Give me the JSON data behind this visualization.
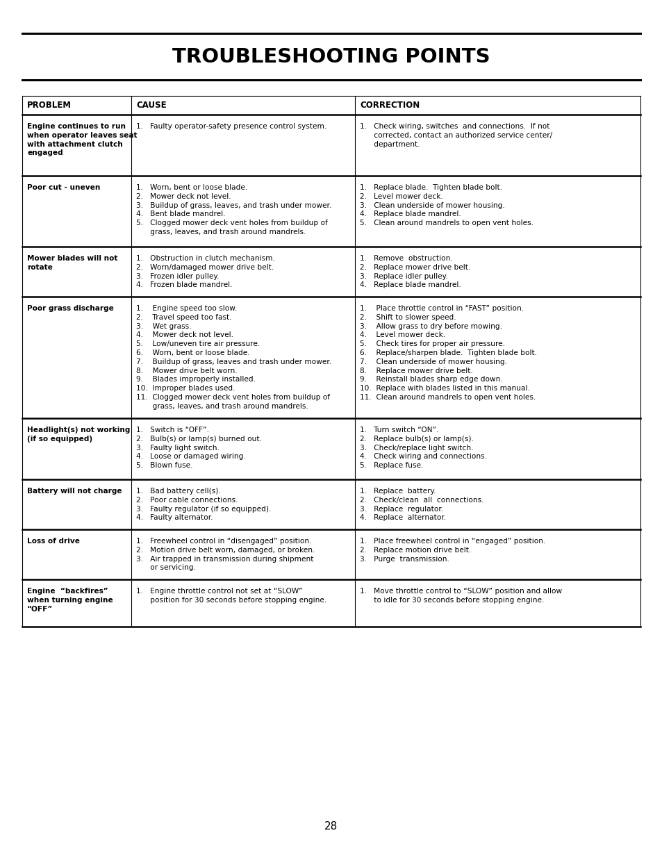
{
  "title": "TROUBLESHOOTING POINTS",
  "page_number": "28",
  "background_color": "#ffffff",
  "text_color": "#000000",
  "col_headers": [
    "PROBLEM",
    "CAUSE",
    "CORRECTION"
  ],
  "c0x": 0.033,
  "c1x": 0.198,
  "c2x": 0.535,
  "c3x": 0.972,
  "rows": [
    {
      "problem": "Engine continues to run\nwhen operator leaves seat\nwith attachment clutch\nengaged",
      "cause": "1.   Faulty operator-safety presence control system.",
      "correction": "1.   Check wiring, switches  and connections.  If not\n      corrected, contact an authorized service center/\n      department."
    },
    {
      "problem": "Poor cut - uneven",
      "cause": "1.   Worn, bent or loose blade.\n2.   Mower deck not level.\n3.   Buildup of grass, leaves, and trash under mower.\n4.   Bent blade mandrel.\n5.   Clogged mower deck vent holes from buildup of\n      grass, leaves, and trash around mandrels.",
      "correction": "1.   Replace blade.  Tighten blade bolt.\n2.   Level mower deck.\n3.   Clean underside of mower housing.\n4.   Replace blade mandrel.\n5.   Clean around mandrels to open vent holes."
    },
    {
      "problem": "Mower blades will not\nrotate",
      "cause": "1.   Obstruction in clutch mechanism.\n2.   Worn/damaged mower drive belt.\n3.   Frozen idler pulley.\n4.   Frozen blade mandrel.",
      "correction": "1.   Remove  obstruction.\n2.   Replace mower drive belt.\n3.   Replace idler pulley.\n4.   Replace blade mandrel."
    },
    {
      "problem": "Poor grass discharge",
      "cause": "1.    Engine speed too slow.\n2.    Travel speed too fast.\n3.    Wet grass.\n4.    Mower deck not level.\n5.    Low/uneven tire air pressure.\n6.    Worn, bent or loose blade.\n7.    Buildup of grass, leaves and trash under mower.\n8.    Mower drive belt worn.\n9.    Blades improperly installed.\n10.  Improper blades used.\n11.  Clogged mower deck vent holes from buildup of\n       grass, leaves, and trash around mandrels.",
      "correction": "1.    Place throttle control in “FAST” position.\n2.    Shift to slower speed.\n3.    Allow grass to dry before mowing.\n4.    Level mower deck.\n5.    Check tires for proper air pressure.\n6.    Replace/sharpen blade.  Tighten blade bolt.\n7.    Clean underside of mower housing.\n8.    Replace mower drive belt.\n9.    Reinstall blades sharp edge down.\n10.  Replace with blades listed in this manual.\n11.  Clean around mandrels to open vent holes."
    },
    {
      "problem": "Headlight(s) not working\n(if so equipped)",
      "cause": "1.   Switch is “OFF”.\n2.   Bulb(s) or lamp(s) burned out.\n3.   Faulty light switch.\n4.   Loose or damaged wiring.\n5.   Blown fuse.",
      "correction": "1.   Turn switch “ON”.\n2.   Replace bulb(s) or lamp(s).\n3.   Check/replace light switch.\n4.   Check wiring and connections.\n5.   Replace fuse."
    },
    {
      "problem": "Battery will not charge",
      "cause": "1.   Bad battery cell(s).\n2.   Poor cable connections.\n3.   Faulty regulator (if so equipped).\n4.   Faulty alternator.",
      "correction": "1.   Replace  battery.\n2.   Check/clean  all  connections.\n3.   Replace  regulator.\n4.   Replace  alternator."
    },
    {
      "problem": "Loss of drive",
      "cause": "1.   Freewheel control in “disengaged” position.\n2.   Motion drive belt worn, damaged, or broken.\n3.   Air trapped in transmission during shipment\n      or servicing.",
      "correction": "1.   Place freewheel control in “engaged” position.\n2.   Replace motion drive belt.\n3.   Purge  transmission."
    },
    {
      "problem": "Engine  “backfires”\nwhen turning engine\n“OFF”",
      "cause": "1.   Engine throttle control not set at “SLOW”\n      position for 30 seconds before stopping engine.",
      "correction": "1.   Move throttle control to “SLOW” position and allow\n      to idle for 30 seconds before stopping engine."
    }
  ]
}
